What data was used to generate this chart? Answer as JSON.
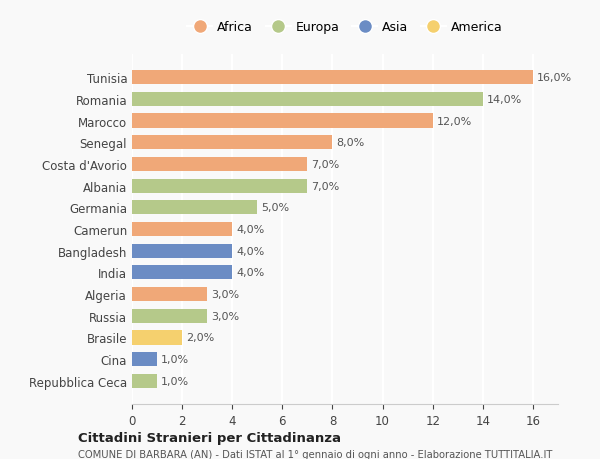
{
  "countries": [
    "Tunisia",
    "Romania",
    "Marocco",
    "Senegal",
    "Costa d'Avorio",
    "Albania",
    "Germania",
    "Camerun",
    "Bangladesh",
    "India",
    "Algeria",
    "Russia",
    "Brasile",
    "Cina",
    "Repubblica Ceca"
  ],
  "values": [
    16.0,
    14.0,
    12.0,
    8.0,
    7.0,
    7.0,
    5.0,
    4.0,
    4.0,
    4.0,
    3.0,
    3.0,
    2.0,
    1.0,
    1.0
  ],
  "continents": [
    "Africa",
    "Europa",
    "Africa",
    "Africa",
    "Africa",
    "Europa",
    "Europa",
    "Africa",
    "Asia",
    "Asia",
    "Africa",
    "Europa",
    "America",
    "Asia",
    "Europa"
  ],
  "colors": {
    "Africa": "#F0A878",
    "Europa": "#B5C98A",
    "Asia": "#6B8CC4",
    "America": "#F5D06E"
  },
  "legend_order": [
    "Africa",
    "Europa",
    "Asia",
    "America"
  ],
  "xlim": [
    0,
    17
  ],
  "xticks": [
    0,
    2,
    4,
    6,
    8,
    10,
    12,
    14,
    16
  ],
  "title": "Cittadini Stranieri per Cittadinanza",
  "subtitle": "COMUNE DI BARBARA (AN) - Dati ISTAT al 1° gennaio di ogni anno - Elaborazione TUTTITALIA.IT",
  "bg_color": "#f9f9f9",
  "bar_height": 0.65,
  "grid_color": "#ffffff",
  "spine_color": "#cccccc"
}
